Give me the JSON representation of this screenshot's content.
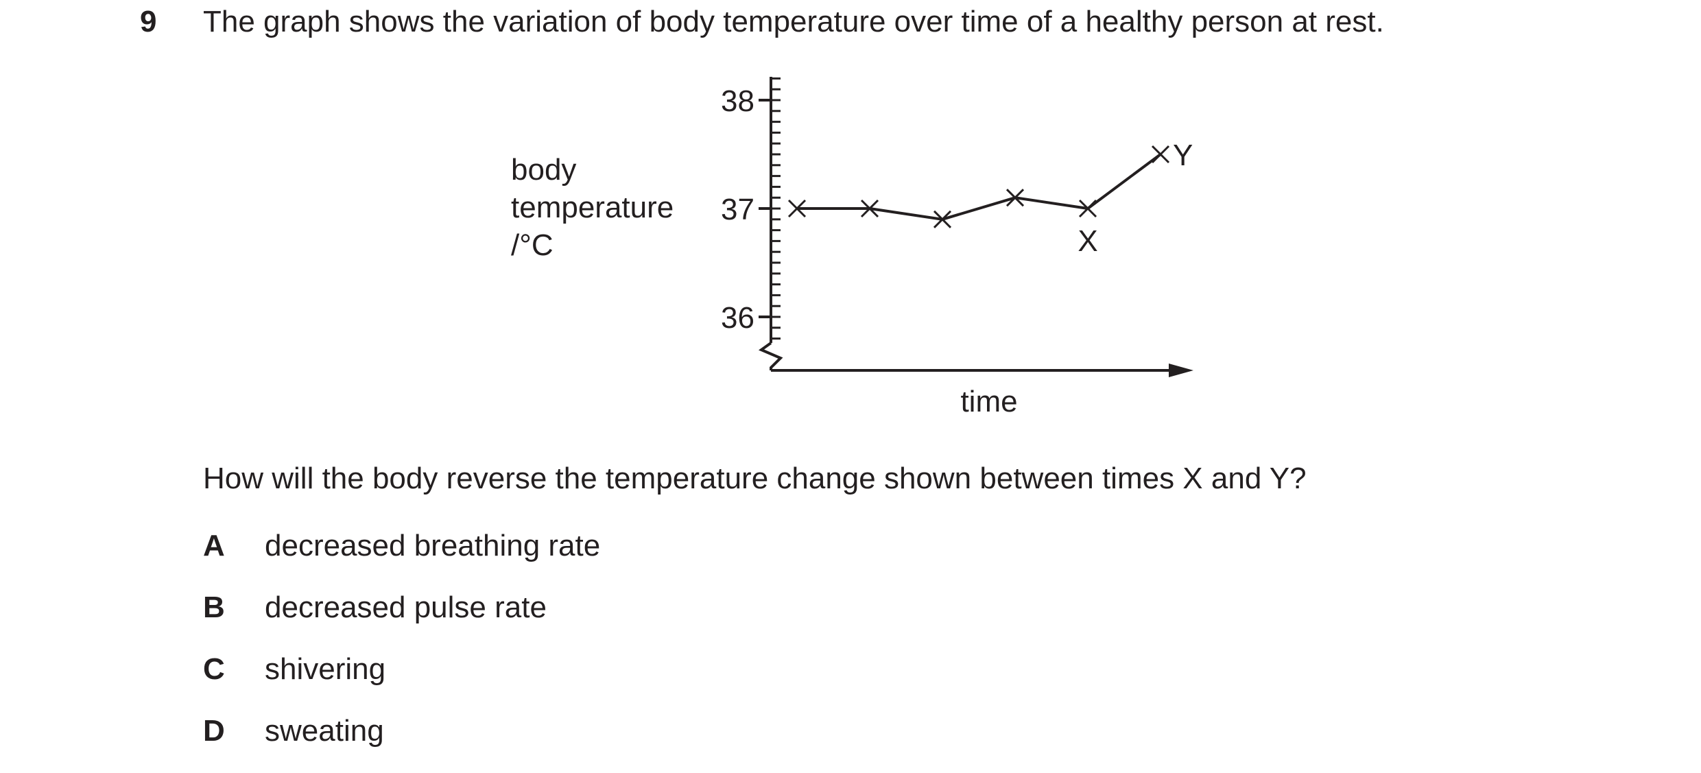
{
  "question": {
    "number": "9",
    "stem": "The graph shows the variation of body temperature over time of a healthy person at rest.",
    "prompt": "How will the body reverse the temperature change shown between times X and Y?",
    "options": [
      {
        "letter": "A",
        "text": "decreased breathing rate"
      },
      {
        "letter": "B",
        "text": "decreased pulse rate"
      },
      {
        "letter": "C",
        "text": "shivering"
      },
      {
        "letter": "D",
        "text": "sweating"
      }
    ]
  },
  "chart_data": {
    "type": "line",
    "ylabel_lines": [
      "body",
      "temperature",
      "/°C"
    ],
    "xlabel": "time",
    "y_ticks": [
      "38",
      "37",
      "36"
    ],
    "ylim": [
      35.8,
      38.2
    ],
    "points": [
      {
        "t": 1,
        "y": 37.0
      },
      {
        "t": 2,
        "y": 37.0
      },
      {
        "t": 3,
        "y": 36.9
      },
      {
        "t": 4,
        "y": 37.1
      },
      {
        "t": 5,
        "y": 37.0,
        "label": "X"
      },
      {
        "t": 6,
        "y": 37.5,
        "label": "Y"
      }
    ],
    "axis_break": true,
    "grid": false,
    "line_color": "#231f20"
  }
}
